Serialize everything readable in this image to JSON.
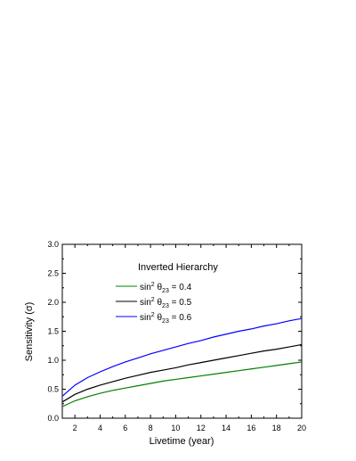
{
  "chart_data": {
    "type": "line",
    "title": "",
    "xlabel": "Livetime (year)",
    "ylabel": "Sensitivity (σ)",
    "xlim": [
      1,
      20
    ],
    "ylim": [
      0.0,
      3.0
    ],
    "x_ticks": [
      2,
      4,
      6,
      8,
      10,
      12,
      14,
      16,
      18,
      20
    ],
    "x_tick_labels": [
      "2",
      "4",
      "6",
      "8",
      "10",
      "12",
      "14",
      "16",
      "18",
      "20"
    ],
    "y_ticks": [
      0.0,
      0.5,
      1.0,
      1.5,
      2.0,
      2.5,
      3.0
    ],
    "y_tick_labels": [
      "0.0",
      "0.5",
      "1.0",
      "1.5",
      "2.0",
      "2.5",
      "3.0"
    ],
    "grid": false,
    "legend_placement": "top-center",
    "legend_title": "Inverted Hierarchy",
    "x": [
      1,
      2,
      3,
      4,
      5,
      6,
      7,
      8,
      9,
      10,
      11,
      12,
      13,
      14,
      15,
      16,
      17,
      18,
      19,
      20
    ],
    "series": [
      {
        "name": "sin² θ₂₃ = 0.4",
        "legend_parts": {
          "a": "sin",
          "b": "2",
          "c": " θ",
          "d": "23",
          "e": " = 0.4"
        },
        "color": "#008000",
        "values": [
          0.2,
          0.3,
          0.37,
          0.43,
          0.48,
          0.52,
          0.56,
          0.6,
          0.64,
          0.67,
          0.7,
          0.73,
          0.76,
          0.79,
          0.82,
          0.85,
          0.88,
          0.91,
          0.94,
          0.97
        ]
      },
      {
        "name": "sin² θ₂₃ = 0.5",
        "legend_parts": {
          "a": "sin",
          "b": "2",
          "c": " θ",
          "d": "23",
          "e": " = 0.5"
        },
        "color": "#000000",
        "values": [
          0.28,
          0.41,
          0.5,
          0.57,
          0.63,
          0.69,
          0.74,
          0.79,
          0.83,
          0.87,
          0.92,
          0.96,
          1.0,
          1.04,
          1.08,
          1.12,
          1.16,
          1.19,
          1.23,
          1.27
        ]
      },
      {
        "name": "sin² θ₂₃ = 0.6",
        "legend_parts": {
          "a": "sin",
          "b": "2",
          "c": " θ",
          "d": "23",
          "e": " = 0.6"
        },
        "color": "#0000ff",
        "values": [
          0.38,
          0.57,
          0.7,
          0.8,
          0.89,
          0.97,
          1.04,
          1.11,
          1.17,
          1.23,
          1.29,
          1.34,
          1.4,
          1.45,
          1.5,
          1.54,
          1.59,
          1.63,
          1.68,
          1.72
        ]
      }
    ]
  }
}
